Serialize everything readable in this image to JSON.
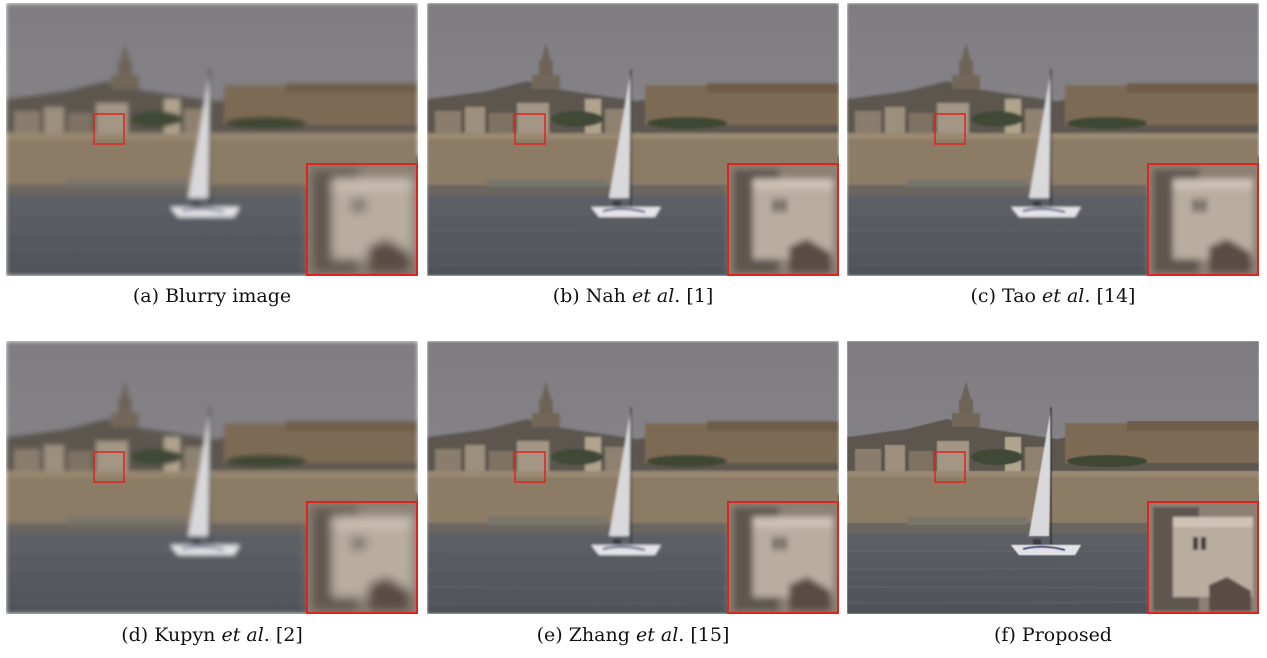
{
  "figure": {
    "panels": [
      {
        "id": "a",
        "label": "(a)",
        "pre": "Blurry image",
        "em": "",
        "post": "",
        "quality": "blurry"
      },
      {
        "id": "b",
        "label": "(b)",
        "pre": "Nah ",
        "em": "et al",
        "post": ". [1]",
        "quality": "soft"
      },
      {
        "id": "c",
        "label": "(c)",
        "pre": "Tao ",
        "em": "et al",
        "post": ". [14]",
        "quality": "soft"
      },
      {
        "id": "d",
        "label": "(d)",
        "pre": "Kupyn ",
        "em": "et al",
        "post": ". [2]",
        "quality": "blurry"
      },
      {
        "id": "e",
        "label": "(e)",
        "pre": "Zhang ",
        "em": "et al",
        "post": ". [15]",
        "quality": "soft"
      },
      {
        "id": "f",
        "label": "(f)",
        "pre": "Proposed",
        "em": "",
        "post": "",
        "quality": "sharp"
      }
    ],
    "colors": {
      "sky": "#8d8b8e",
      "water": "#4e5258",
      "wall": "#8c7b66",
      "highlight": "#e0231d"
    }
  }
}
